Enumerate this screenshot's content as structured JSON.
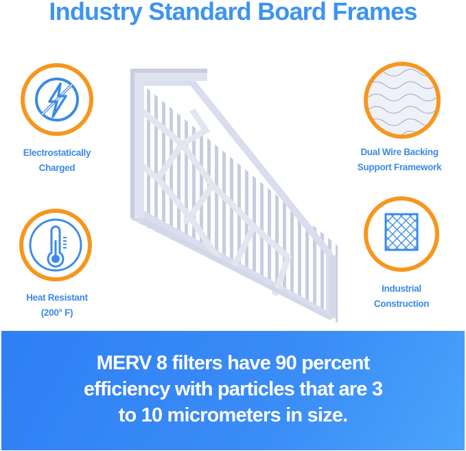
{
  "title": "Industry Standard Board Frames",
  "features": [
    {
      "label_line1": "Electrostatically",
      "label_line2": "Charged",
      "icon": "no-static-bolt-icon"
    },
    {
      "label_line1": "Heat Resistant",
      "label_line2": "(200° F)",
      "icon": "thermometer-icon"
    },
    {
      "label_line1": "Dual Wire Backing",
      "label_line2": "Support Framework",
      "icon": "wire-mesh-icon"
    },
    {
      "label_line1": "Industrial",
      "label_line2": "Construction",
      "icon": "grid-frame-icon"
    }
  ],
  "banner": {
    "line1": "MERV 8 filters have 90 percent",
    "line2": "efficiency with particles that are 3",
    "line3": "to 10 micrometers in size."
  },
  "colors": {
    "accent_blue": "#3d93f2",
    "ring_orange": "#f7961d",
    "banner_blue": "#2f7ff5"
  }
}
